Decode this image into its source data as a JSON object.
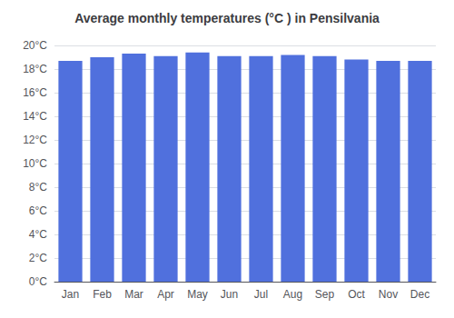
{
  "chart_data": {
    "type": "bar",
    "title": "Average monthly temperatures (°C ) in Pensilvania",
    "categories": [
      "Jan",
      "Feb",
      "Mar",
      "Apr",
      "May",
      "Jun",
      "Jul",
      "Aug",
      "Sep",
      "Oct",
      "Nov",
      "Dec"
    ],
    "values": [
      18.7,
      19.0,
      19.3,
      19.1,
      19.4,
      19.1,
      19.1,
      19.2,
      19.1,
      18.8,
      18.7,
      18.7
    ],
    "ylim": [
      0,
      20
    ],
    "yticks": [
      {
        "value": 0,
        "label": "0°C"
      },
      {
        "value": 2,
        "label": "2°C"
      },
      {
        "value": 4,
        "label": "4°C"
      },
      {
        "value": 6,
        "label": "6°C"
      },
      {
        "value": 8,
        "label": "8°C"
      },
      {
        "value": 10,
        "label": "10°C"
      },
      {
        "value": 12,
        "label": "12°C"
      },
      {
        "value": 14,
        "label": "14°C"
      },
      {
        "value": 16,
        "label": "16°C"
      },
      {
        "value": 18,
        "label": "18°C"
      },
      {
        "value": 20,
        "label": "20°C"
      }
    ],
    "grid": true
  }
}
